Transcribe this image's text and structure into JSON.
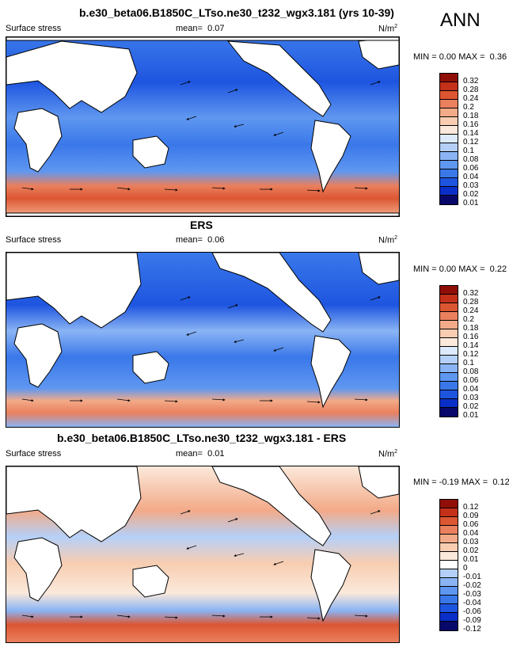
{
  "season": "ANN",
  "palettes": {
    "abs": [
      "#08086b",
      "#0a2fc8",
      "#1e55e0",
      "#3a78ea",
      "#5f97f0",
      "#8ab4f4",
      "#b5d0f8",
      "#ddeafb",
      "#fbe9db",
      "#f8cdb1",
      "#f3aa88",
      "#ea805e",
      "#dc5632",
      "#c4301a",
      "#8f0f08"
    ],
    "diff": [
      "#08086b",
      "#0a2fc8",
      "#1e55e0",
      "#3a78ea",
      "#5f97f0",
      "#8ab4f4",
      "#b5d0f8",
      "#ffffff",
      "#fbe9db",
      "#f8cdb1",
      "#f3aa88",
      "#ea805e",
      "#dc5632",
      "#c4301a",
      "#8f0f08"
    ]
  },
  "panels": [
    {
      "title": "b.e30_beta06.B1850C_LTso.ne30_t232_wgx3.181 (yrs 10-39)",
      "variable": "Surface stress",
      "mean_label": "mean=",
      "mean_value": "0.07",
      "units": "N/m",
      "units_sup": "2",
      "min_label": "MIN =",
      "min_value": "0.00",
      "max_label": "MAX =",
      "max_value": "0.36",
      "colorbar_levels": [
        "0.32",
        "0.28",
        "0.24",
        "0.2",
        "0.18",
        "0.16",
        "0.14",
        "0.12",
        "0.1",
        "0.08",
        "0.06",
        "0.04",
        "0.03",
        "0.02",
        "0.01"
      ]
    },
    {
      "title": "ERS",
      "variable": "Surface stress",
      "mean_label": "mean=",
      "mean_value": "0.06",
      "units": "N/m",
      "units_sup": "2",
      "min_label": "MIN =",
      "min_value": "0.00",
      "max_label": "MAX =",
      "max_value": "0.22",
      "colorbar_levels": [
        "0.32",
        "0.28",
        "0.24",
        "0.2",
        "0.18",
        "0.16",
        "0.14",
        "0.12",
        "0.1",
        "0.08",
        "0.06",
        "0.04",
        "0.03",
        "0.02",
        "0.01"
      ]
    },
    {
      "title": "b.e30_beta06.B1850C_LTso.ne30_t232_wgx3.181 - ERS",
      "variable": "Surface stress",
      "mean_label": "mean=",
      "mean_value": "0.01",
      "units": "N/m",
      "units_sup": "2",
      "min_label": "MIN =",
      "min_value": "-0.19",
      "max_label": "MAX =",
      "max_value": "0.12",
      "colorbar_levels": [
        "0.12",
        "0.09",
        "0.06",
        "0.04",
        "0.03",
        "0.02",
        "0.01",
        "0",
        "-0.01",
        "-0.02",
        "-0.03",
        "-0.04",
        "-0.06",
        "-0.09",
        "-0.12"
      ]
    }
  ]
}
